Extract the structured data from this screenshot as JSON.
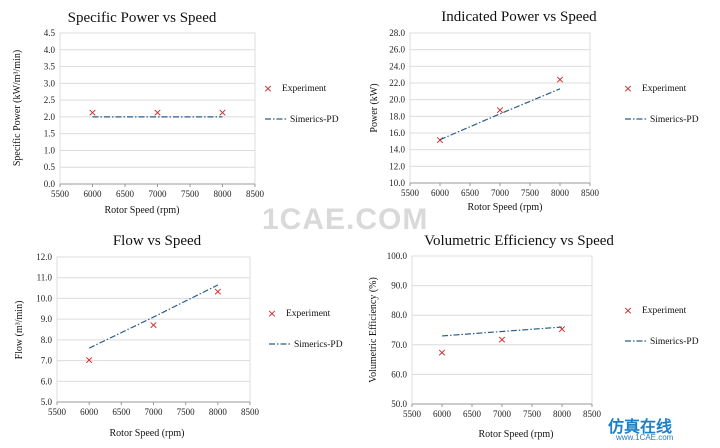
{
  "chart_data": [
    {
      "type": "scatter",
      "title": "Specific Power vs Speed",
      "xlabel": "Rotor Speed (rpm)",
      "ylabel": "Specific Power (kW/m³/min)",
      "xlim": [
        5500,
        8500
      ],
      "xticks": [
        5500,
        6000,
        6500,
        7000,
        7500,
        8000,
        8500
      ],
      "ylim": [
        0,
        4.5
      ],
      "yticks": [
        "0.0",
        "0.5",
        "1.0",
        "1.5",
        "2.0",
        "2.5",
        "3.0",
        "3.5",
        "4.0",
        "4.5"
      ],
      "legend": "right",
      "series": [
        {
          "name": "Experiment",
          "style": "marker",
          "x": [
            6000,
            7000,
            8000
          ],
          "y": [
            2.15,
            2.15,
            2.15
          ]
        },
        {
          "name": "Simerics-PD",
          "style": "dashdot",
          "x": [
            6000,
            7000,
            8000
          ],
          "y": [
            2.0,
            2.0,
            2.0
          ]
        }
      ]
    },
    {
      "type": "scatter",
      "title": "Indicated Power vs Speed",
      "xlabel": "Rotor Speed (rpm)",
      "ylabel": "Power (kW)",
      "xlim": [
        5500,
        8500
      ],
      "xticks": [
        5500,
        6000,
        6500,
        7000,
        7500,
        8000,
        8500
      ],
      "ylim": [
        10,
        28
      ],
      "yticks": [
        "10.0",
        "12.0",
        "14.0",
        "16.0",
        "18.0",
        "20.0",
        "22.0",
        "24.0",
        "26.0",
        "28.0"
      ],
      "legend": "right",
      "series": [
        {
          "name": "Experiment",
          "style": "marker",
          "x": [
            6000,
            7000,
            8000
          ],
          "y": [
            15.2,
            18.8,
            22.5
          ]
        },
        {
          "name": "Simerics-PD",
          "style": "dashdot",
          "x": [
            6000,
            7000,
            8000
          ],
          "y": [
            15.2,
            18.3,
            21.3
          ]
        }
      ]
    },
    {
      "type": "scatter",
      "title": "Flow vs Speed",
      "xlabel": "Rotor Speed (rpm)",
      "ylabel": "Flow (m³/min)",
      "xlim": [
        5500,
        8500
      ],
      "xticks": [
        5500,
        6000,
        6500,
        7000,
        7500,
        8000,
        8500
      ],
      "ylim": [
        5,
        12
      ],
      "yticks": [
        "5.0",
        "6.0",
        "7.0",
        "8.0",
        "9.0",
        "10.0",
        "11.0",
        "12.0"
      ],
      "legend": "right",
      "series": [
        {
          "name": "Experiment",
          "style": "marker",
          "x": [
            6000,
            7000,
            8000
          ],
          "y": [
            7.05,
            8.75,
            10.35
          ]
        },
        {
          "name": "Simerics-PD",
          "style": "dashdot",
          "x": [
            6000,
            7000,
            8000
          ],
          "y": [
            7.6,
            9.1,
            10.65
          ]
        }
      ]
    },
    {
      "type": "scatter",
      "title": "Volumetric Efficiency vs Speed",
      "xlabel": "Rotor Speed (rpm)",
      "ylabel": "Volumetric Efficiency (%)",
      "xlim": [
        5500,
        8500
      ],
      "xticks": [
        5500,
        6000,
        6500,
        7000,
        7500,
        8000,
        8500
      ],
      "ylim": [
        50,
        100
      ],
      "yticks": [
        "50.0",
        "60.0",
        "70.0",
        "80.0",
        "90.0",
        "100.0"
      ],
      "legend": "right",
      "series": [
        {
          "name": "Experiment",
          "style": "marker",
          "x": [
            6000,
            7000,
            8000
          ],
          "y": [
            67.5,
            72.0,
            75.5
          ]
        },
        {
          "name": "Simerics-PD",
          "style": "dashdot",
          "x": [
            6000,
            7000,
            8000
          ],
          "y": [
            73.0,
            74.5,
            76.0
          ]
        }
      ]
    }
  ],
  "watermark": {
    "text": "1CAE.COM",
    "brand": "仿真在线",
    "url": "www.1CAE.com"
  },
  "colors": {
    "marker": "#d62020",
    "model_line": "#2b5d8a",
    "grid": "#dcdcdc",
    "axis": "#9a9a9a"
  }
}
